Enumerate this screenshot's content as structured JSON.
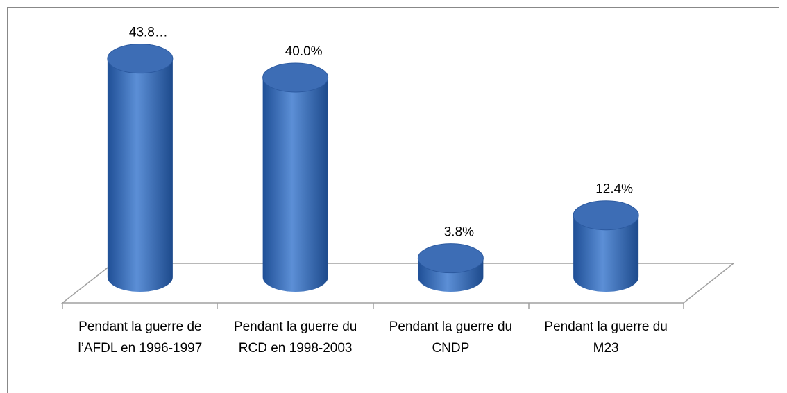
{
  "chart_data": {
    "type": "bar",
    "categories": [
      "Pendant la guerre de l’AFDL en 1996-1997",
      "Pendant la guerre du RCD en 1998-2003",
      "Pendant la guerre du CNDP",
      "Pendant la guerre du M23"
    ],
    "values": [
      43.8,
      40.0,
      3.8,
      12.4
    ],
    "value_labels": [
      "43.8…",
      "40.0%",
      "3.8%",
      "12.4%"
    ],
    "color": "#4a7bc4"
  }
}
